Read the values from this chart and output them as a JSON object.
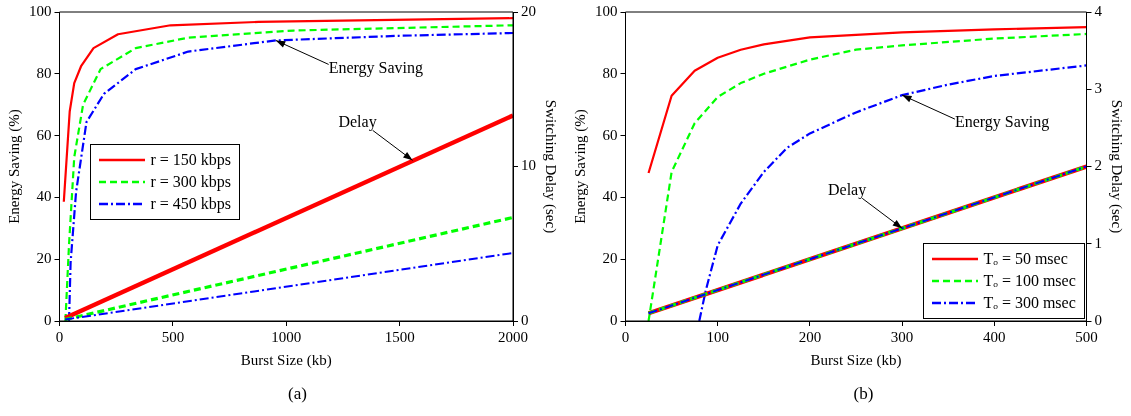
{
  "chart_data": [
    {
      "type": "line",
      "xlabel": "Burst Size (kb)",
      "ylabel": "Energy Saving (%)",
      "y2label": "Switching Delay (sec)",
      "xlim": [
        0,
        2000
      ],
      "xticks": [
        0,
        500,
        1000,
        1500,
        2000
      ],
      "ylim": [
        0,
        100
      ],
      "yticks": [
        0,
        20,
        40,
        60,
        80,
        100
      ],
      "y2lim": [
        0,
        20
      ],
      "y2ticks": [
        0,
        10,
        20
      ],
      "grid": false,
      "legend": "left",
      "marker": "none",
      "series": [
        {
          "name": "r = 150 kbps",
          "color": "#ff0000",
          "line_style": "solid",
          "x": [
            19,
            45,
            65,
            96,
            150,
            258,
            490,
            877,
            2000
          ],
          "values": [
            38.6,
            67.8,
            77,
            82.6,
            88.3,
            92.8,
            95.7,
            96.8,
            98
          ]
        },
        {
          "name": "r = 300 kbps",
          "color": "#00ff00",
          "line_style": "dashed",
          "x": [
            26,
            42,
            65,
            104,
            181,
            336,
            568,
            1032,
            2000
          ],
          "values": [
            0,
            24.7,
            53,
            70,
            81.5,
            88.3,
            91.7,
            94,
            95.7
          ]
        },
        {
          "name": "r = 450 kbps",
          "color": "#0000ff",
          "line_style": "dashdot",
          "x": [
            42,
            49,
            73,
            119,
            196,
            336,
            568,
            954,
            1496,
            2000
          ],
          "values": [
            0,
            19,
            41.7,
            64.4,
            73.5,
            81.5,
            87.2,
            90.8,
            92.3,
            93.2
          ]
        },
        {
          "color": "#ff0000",
          "line_style": "solid",
          "axis": "y2",
          "x": [
            25,
            2000
          ],
          "values": [
            0.2,
            13.3
          ]
        },
        {
          "color": "#00ff00",
          "line_style": "dashed",
          "axis": "y2",
          "x": [
            25,
            2000
          ],
          "values": [
            0.1,
            6.7
          ]
        },
        {
          "color": "#0000ff",
          "line_style": "dashdot",
          "axis": "y2",
          "x": [
            25,
            2000
          ],
          "values": [
            0.1,
            4.4
          ]
        }
      ],
      "annotations": [
        {
          "text": "Energy Saving",
          "x": 954,
          "y": 90.8
        },
        {
          "text": "Delay",
          "x": 1557,
          "y": 52
        },
        "(a)"
      ]
    },
    {
      "type": "line",
      "xlabel": "Burst Size (kb)",
      "ylabel": "Energy Saving (%)",
      "y2label": "Switching Delay (sec)",
      "xlim": [
        0,
        500
      ],
      "xticks": [
        0,
        100,
        200,
        300,
        400,
        500
      ],
      "ylim": [
        0,
        100
      ],
      "yticks": [
        0,
        20,
        40,
        60,
        80,
        100
      ],
      "y2lim": [
        0,
        4
      ],
      "y2ticks": [
        0,
        1,
        2,
        3,
        4
      ],
      "grid": false,
      "legend": "bottom right",
      "marker": "none",
      "series": [
        {
          "name": "Tₒ = 50 msec",
          "color": "#ff0000",
          "line_style": "solid",
          "x": [
            25,
            50,
            75,
            100,
            125,
            150,
            200,
            300,
            400,
            500
          ],
          "values": [
            47.9,
            72.9,
            81,
            85.2,
            87.8,
            89.5,
            91.8,
            93.4,
            94.4,
            95.1
          ]
        },
        {
          "name": "Tₒ = 100 msec",
          "color": "#00ff00",
          "line_style": "dashed",
          "x": [
            25,
            50,
            75,
            100,
            125,
            150,
            200,
            250,
            300,
            400,
            500
          ],
          "values": [
            0,
            48.2,
            64,
            72.5,
            77,
            80,
            84.6,
            87.8,
            89.2,
            91.4,
            92.9
          ]
        },
        {
          "name": "Tₒ = 300 msec",
          "color": "#0000ff",
          "line_style": "dashdot",
          "x": [
            80,
            87,
            100,
            125,
            150,
            175,
            200,
            250,
            300,
            350,
            400,
            500
          ],
          "values": [
            0,
            9.8,
            24.5,
            38,
            48.2,
            56,
            60.7,
            67.5,
            73.1,
            76.5,
            79.3,
            82.7
          ]
        },
        {
          "color": "#ff0000",
          "line_style": "solid",
          "axis": "y2",
          "x": [
            25,
            500
          ],
          "values": [
            0.1,
            2
          ]
        },
        {
          "color": "#00ff00",
          "line_style": "dashed",
          "axis": "y2",
          "x": [
            25,
            500
          ],
          "values": [
            0.1,
            2
          ]
        },
        {
          "color": "#0000ff",
          "line_style": "dashdot",
          "axis": "y2",
          "x": [
            25,
            500
          ],
          "values": [
            0.1,
            2
          ]
        }
      ],
      "annotations": [
        {
          "text": "Energy Saving",
          "x": 300,
          "y": 73.1
        },
        {
          "text": "Delay",
          "x": 300,
          "y": 30
        },
        "(b)"
      ]
    }
  ]
}
